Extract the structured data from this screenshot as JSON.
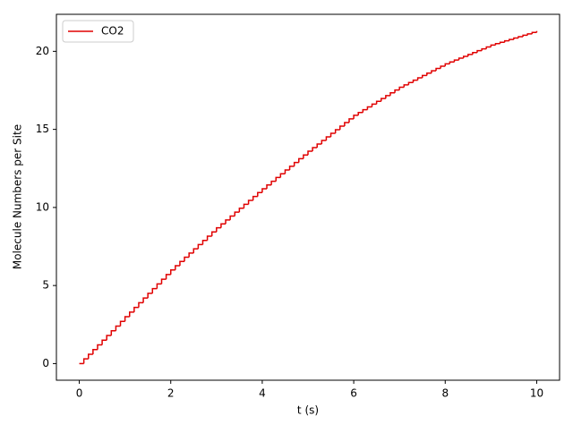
{
  "chart_data": {
    "type": "line",
    "step": "post",
    "xlabel": "t (s)",
    "ylabel": "Molecule Numbers per Site",
    "x": [
      0,
      0.1,
      0.2,
      0.3,
      0.4,
      0.5,
      0.6,
      0.7,
      0.8,
      0.9,
      1,
      1.1,
      1.2,
      1.3,
      1.4,
      1.5,
      1.6,
      1.7,
      1.8,
      1.9,
      2,
      2.1,
      2.2,
      2.3,
      2.4,
      2.5,
      2.6,
      2.7,
      2.8,
      2.9,
      3,
      3.1,
      3.2,
      3.3,
      3.4,
      3.5,
      3.6,
      3.7,
      3.8,
      3.9,
      4,
      4.1,
      4.2,
      4.3,
      4.4,
      4.5,
      4.6,
      4.7,
      4.8,
      4.9,
      5,
      5.1,
      5.2,
      5.3,
      5.4,
      5.5,
      5.6,
      5.7,
      5.8,
      5.9,
      6,
      6.1,
      6.2,
      6.3,
      6.4,
      6.5,
      6.6,
      6.7,
      6.8,
      6.9,
      7,
      7.1,
      7.2,
      7.3,
      7.4,
      7.5,
      7.6,
      7.7,
      7.8,
      7.9,
      8,
      8.1,
      8.2,
      8.3,
      8.4,
      8.5,
      8.6,
      8.7,
      8.8,
      8.9,
      9,
      9.1,
      9.2,
      9.3,
      9.4,
      9.5,
      9.6,
      9.7,
      9.8,
      9.9,
      10
    ],
    "series": [
      {
        "name": "CO2",
        "color": "#e00000",
        "values": [
          0,
          0.3,
          0.6,
          0.9,
          1.2,
          1.5,
          1.8,
          2.1,
          2.4,
          2.7,
          3.0,
          3.3,
          3.6,
          3.9,
          4.2,
          4.5,
          4.8,
          5.1,
          5.4,
          5.7,
          6.0,
          6.27,
          6.54,
          6.81,
          7.08,
          7.35,
          7.62,
          7.89,
          8.16,
          8.43,
          8.7,
          8.95,
          9.2,
          9.45,
          9.7,
          9.95,
          10.2,
          10.45,
          10.7,
          10.95,
          11.2,
          11.44,
          11.68,
          11.92,
          12.16,
          12.4,
          12.64,
          12.88,
          13.12,
          13.36,
          13.6,
          13.83,
          14.06,
          14.29,
          14.52,
          14.75,
          14.98,
          15.21,
          15.44,
          15.67,
          15.9,
          16.08,
          16.26,
          16.44,
          16.62,
          16.8,
          16.98,
          17.16,
          17.34,
          17.52,
          17.7,
          17.85,
          18.0,
          18.15,
          18.3,
          18.45,
          18.6,
          18.75,
          18.9,
          19.05,
          19.2,
          19.32,
          19.44,
          19.56,
          19.68,
          19.8,
          19.92,
          20.04,
          20.16,
          20.28,
          20.4,
          20.49,
          20.58,
          20.67,
          20.76,
          20.85,
          20.94,
          21.03,
          21.12,
          21.21,
          21.3
        ]
      }
    ],
    "xlim": [
      -0.5,
      10.5
    ],
    "ylim": [
      -1.065,
      22.37
    ],
    "xticks": [
      0,
      2,
      4,
      6,
      8,
      10
    ],
    "yticks": [
      0,
      5,
      10,
      15,
      20
    ],
    "legend": "upper left"
  }
}
